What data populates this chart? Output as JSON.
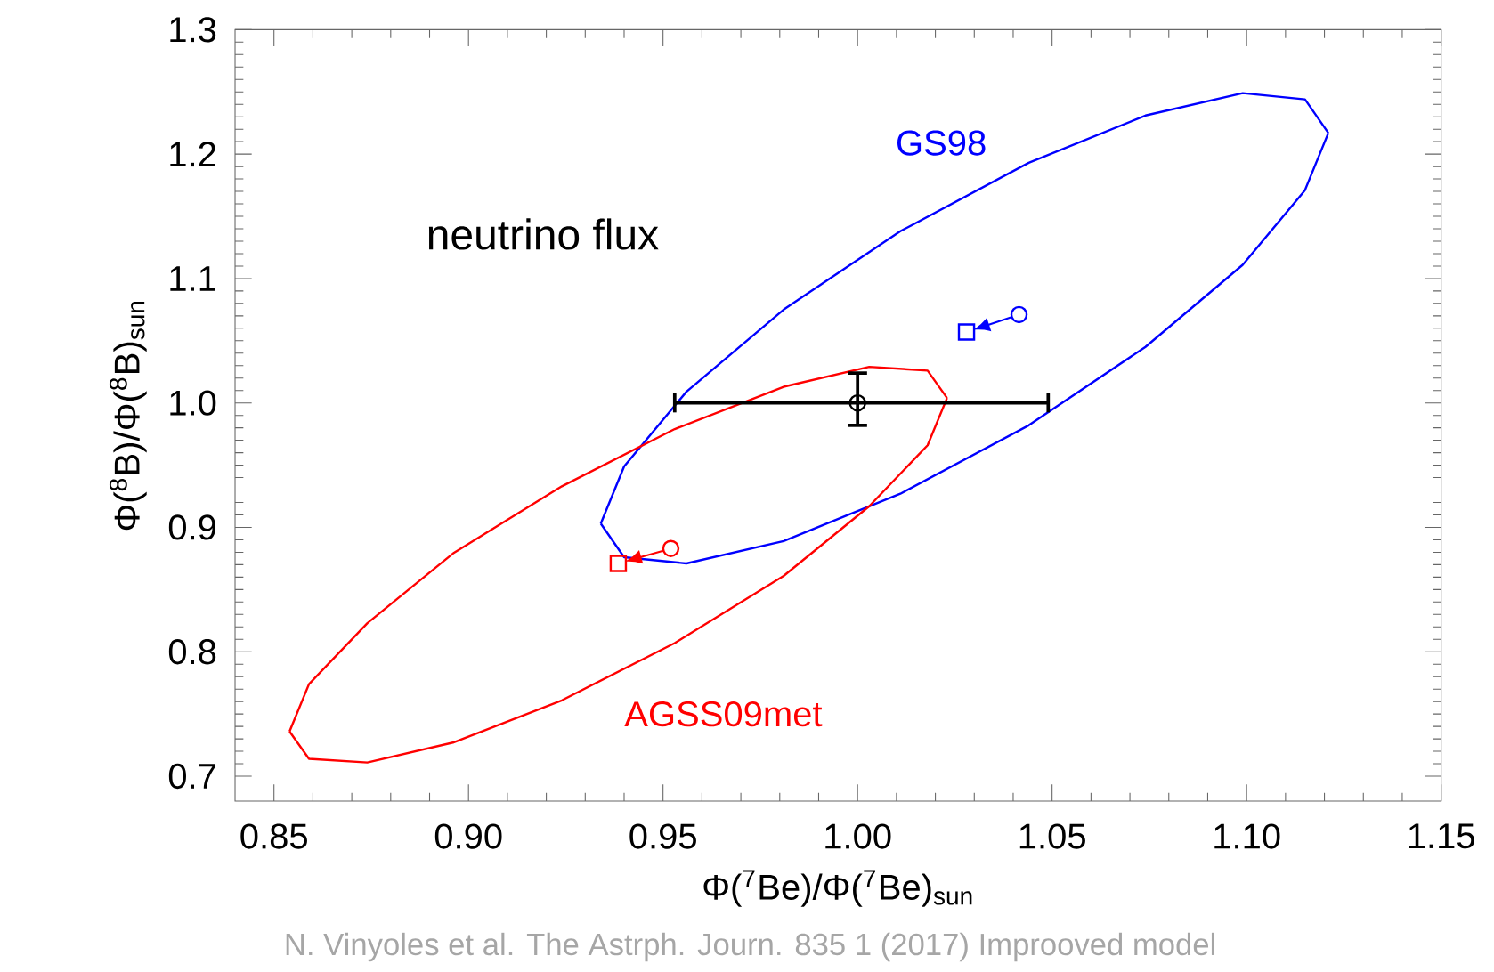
{
  "chart_data": {
    "type": "scatter",
    "xlabel": "Φ($^{7}$Be)/Φ($^{7}$Be)$_{sun}$",
    "ylabel": "Φ($^{8}$B)/Φ($^{8}$B)$_{sun}$",
    "annotations": [
      "neutrino flux",
      "N. Vinyoles et al. The Astrph. Journ. 835 1 (2017) Improoved model"
    ],
    "xlim": [
      0.84,
      1.15
    ],
    "ylim": [
      0.68,
      1.3
    ],
    "xticks": [
      {
        "value": 0.85,
        "label": "0.85"
      },
      {
        "value": 0.9,
        "label": "0.90"
      },
      {
        "value": 0.95,
        "label": "0.95"
      },
      {
        "value": 1.0,
        "label": "1.00"
      },
      {
        "value": 1.05,
        "label": "1.05"
      },
      {
        "value": 1.1,
        "label": "1.10"
      },
      {
        "value": 1.15,
        "label": "1.15"
      }
    ],
    "yticks": [
      {
        "value": 0.7,
        "label": "0.7"
      },
      {
        "value": 0.8,
        "label": "0.8"
      },
      {
        "value": 0.9,
        "label": "0.9"
      },
      {
        "value": 1.0,
        "label": "1.0"
      },
      {
        "value": 1.1,
        "label": "1.1"
      },
      {
        "value": 1.2,
        "label": "1.2"
      },
      {
        "value": 1.3,
        "label": "1.3"
      }
    ],
    "legend": false,
    "grid": false,
    "series": [
      {
        "name": "GS98",
        "type": "line",
        "color": "#0000ff",
        "marker": "none",
        "x": [
          0.934,
          0.94,
          0.956,
          0.981,
          1.011,
          1.044,
          1.074,
          1.099,
          1.115,
          1.121
        ],
        "values": [
          0.903,
          0.949,
          1.009,
          1.075,
          1.138,
          1.193,
          1.231,
          1.249,
          1.244,
          1.217
        ]
      },
      {
        "type": "line",
        "color": "#0000ff",
        "marker": "none",
        "x": [
          0.934,
          0.94,
          0.956,
          0.981,
          1.011,
          1.044,
          1.074,
          1.099,
          1.115,
          1.121
        ],
        "values": [
          0.903,
          0.876,
          0.871,
          0.889,
          0.927,
          0.982,
          1.045,
          1.111,
          1.171,
          1.217
        ]
      },
      {
        "name": "AGSS09met",
        "type": "line",
        "color": "#ff0000",
        "marker": "none",
        "x": [
          0.854,
          0.859,
          0.874,
          0.896,
          0.924,
          0.953,
          0.981,
          1.003,
          1.018,
          1.023
        ],
        "values": [
          0.736,
          0.774,
          0.823,
          0.879,
          0.933,
          0.979,
          1.013,
          1.029,
          1.026,
          1.004
        ]
      },
      {
        "type": "line",
        "color": "#ff0000",
        "marker": "none",
        "x": [
          0.854,
          0.859,
          0.874,
          0.896,
          0.924,
          0.953,
          0.981,
          1.003,
          1.018,
          1.023
        ],
        "values": [
          0.736,
          0.714,
          0.711,
          0.727,
          0.761,
          0.807,
          0.861,
          0.917,
          0.966,
          1.004
        ]
      },
      {
        "type": "scatter",
        "color": "#0000ff",
        "marker": "circle",
        "x": [
          1.0415
        ],
        "values": [
          1.071
        ]
      },
      {
        "type": "scatter",
        "color": "#0000ff",
        "marker": "square",
        "x": [
          1.028
        ],
        "values": [
          1.057
        ]
      },
      {
        "type": "scatter",
        "color": "#ff0000",
        "marker": "circle",
        "x": [
          0.952
        ],
        "values": [
          0.883
        ]
      },
      {
        "type": "scatter",
        "color": "#ff0000",
        "marker": "square",
        "x": [
          0.9385
        ],
        "values": [
          0.871
        ]
      },
      {
        "type": "scatter",
        "color": "#000000",
        "marker": "circle",
        "x": [
          1.0
        ],
        "values": [
          1.0
        ],
        "errors": [
          [
            0.982,
            1.024
          ]
        ],
        "xerrors": [
          [
            0.953,
            1.049
          ]
        ]
      }
    ]
  }
}
